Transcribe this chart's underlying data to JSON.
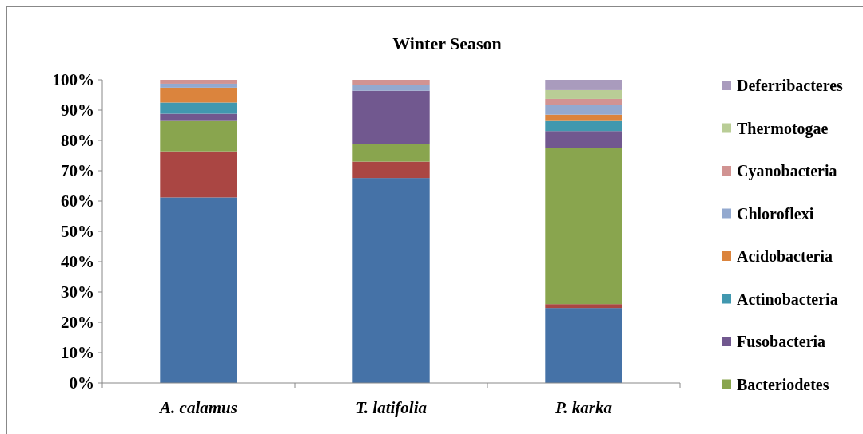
{
  "chart_data": {
    "type": "bar",
    "title": "Winter Season",
    "stacked": true,
    "categories": [
      "A. calamus",
      "T. latifolia",
      "P. karka"
    ],
    "ylim": [
      0,
      100
    ],
    "yticks": [
      {
        "value": 0,
        "label": "0%"
      },
      {
        "value": 10,
        "label": "10%"
      },
      {
        "value": 20,
        "label": "20%"
      },
      {
        "value": 30,
        "label": "30%"
      },
      {
        "value": 40,
        "label": "40%"
      },
      {
        "value": 50,
        "label": "50%"
      },
      {
        "value": 60,
        "label": "60%"
      },
      {
        "value": 70,
        "label": "70%"
      },
      {
        "value": 80,
        "label": "80%"
      },
      {
        "value": 90,
        "label": "90%"
      },
      {
        "value": 100,
        "label": "100%"
      }
    ],
    "grid": false,
    "legend": "right",
    "series": [
      {
        "color": "#4572a7",
        "values": [
          61.2,
          67.6,
          24.7
        ]
      },
      {
        "color": "#aa4643",
        "values": [
          15.2,
          5.4,
          1.3
        ]
      },
      {
        "name": "Bacteriodetes",
        "color": "#89a54e",
        "values": [
          10,
          5.8,
          51.6
        ]
      },
      {
        "name": "Fusobacteria",
        "color": "#71588f",
        "values": [
          2.4,
          17.6,
          5.5
        ]
      },
      {
        "name": "Actinobacteria",
        "color": "#4198af",
        "values": [
          3.7,
          0,
          3.3
        ]
      },
      {
        "name": "Acidobacteria",
        "color": "#db843d",
        "values": [
          4.9,
          0,
          2.1
        ]
      },
      {
        "name": "Chloroflexi",
        "color": "#93a9cf",
        "values": [
          1.3,
          1.8,
          3.3
        ]
      },
      {
        "name": "Cyanobacteria",
        "color": "#d19392",
        "values": [
          1.3,
          1.8,
          1.9
        ]
      },
      {
        "name": "Thermotogae",
        "color": "#b9cd96",
        "values": [
          0,
          0,
          2.9
        ]
      },
      {
        "name": "Deferribacteres",
        "color": "#a99bbd",
        "values": [
          0,
          0,
          3.4
        ]
      }
    ]
  }
}
